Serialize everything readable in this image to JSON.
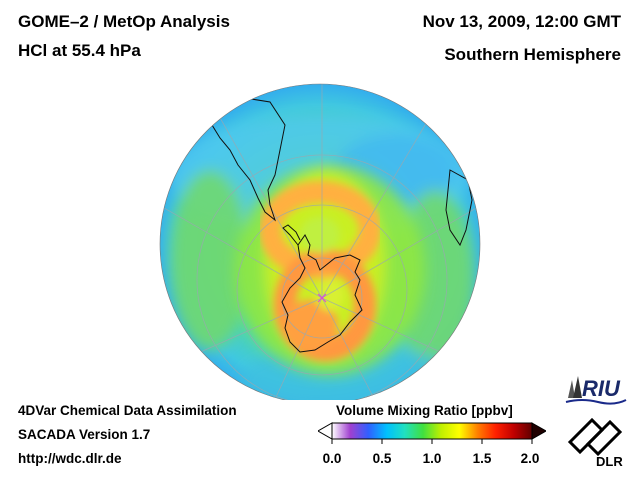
{
  "header": {
    "title_line1": "GOME–2 / MetOp Analysis",
    "title_line2": "HCl at 55.4 hPa",
    "date": "Nov 13, 2009, 12:00 GMT",
    "region": "Southern Hemisphere"
  },
  "footer": {
    "line1": "4DVar Chemical Data Assimilation",
    "line2": "SACADA Version 1.7",
    "line3": "http://wdc.dlr.de"
  },
  "colorbar": {
    "title": "Volume Mixing Ratio [ppbv]",
    "ticks": [
      "0.0",
      "0.5",
      "1.0",
      "1.5",
      "2.0"
    ],
    "colors": [
      "#ffffff",
      "#a040d0",
      "#3060ff",
      "#00c0ff",
      "#20e0c0",
      "#40e040",
      "#c0f000",
      "#ffff00",
      "#ff8000",
      "#ff2000",
      "#c00000",
      "#600000"
    ]
  },
  "logos": {
    "riu": "RIU",
    "dlr": "DLR"
  }
}
